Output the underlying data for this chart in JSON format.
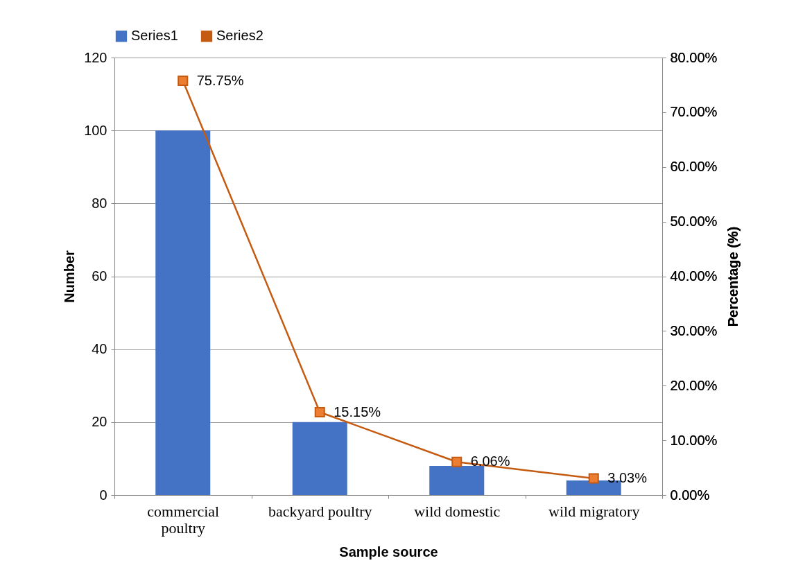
{
  "chart_data": {
    "type": "bar",
    "xlabel": "Sample source",
    "ylabel": "Number",
    "y2label": "Percentage (%)",
    "categories": [
      "commercial poultry",
      "backyard poultry",
      "wild domestic",
      "wild migratory"
    ],
    "series": [
      {
        "name": "Series1",
        "color": "#4472c4",
        "values": [
          100,
          20,
          8,
          4
        ]
      },
      {
        "name": "Series2",
        "type": "line",
        "axis": "y2",
        "color": "#c55a11",
        "values": [
          75.75,
          15.15,
          6.06,
          3.03
        ],
        "value_labels": [
          "75.75%",
          "15.15%",
          "6.06%",
          "3.03%"
        ]
      }
    ],
    "ylim": [
      0,
      120
    ],
    "yticks": [
      0,
      20,
      40,
      60,
      80,
      100,
      120
    ],
    "y2lim": [
      0,
      80
    ],
    "y2ticks": [
      {
        "value": 0,
        "label": "0.00%"
      },
      {
        "value": 10,
        "label": "10.00%"
      },
      {
        "value": 20,
        "label": "20.00%"
      },
      {
        "value": 30,
        "label": "30.00%"
      },
      {
        "value": 40,
        "label": "40.00%"
      },
      {
        "value": 50,
        "label": "50.00%"
      },
      {
        "value": 60,
        "label": "60.00%"
      },
      {
        "value": 70,
        "label": "70.00%"
      },
      {
        "value": 80,
        "label": "80.00%"
      }
    ],
    "grid": "y",
    "legend": "top",
    "marker": "square",
    "line_style": "solid"
  }
}
